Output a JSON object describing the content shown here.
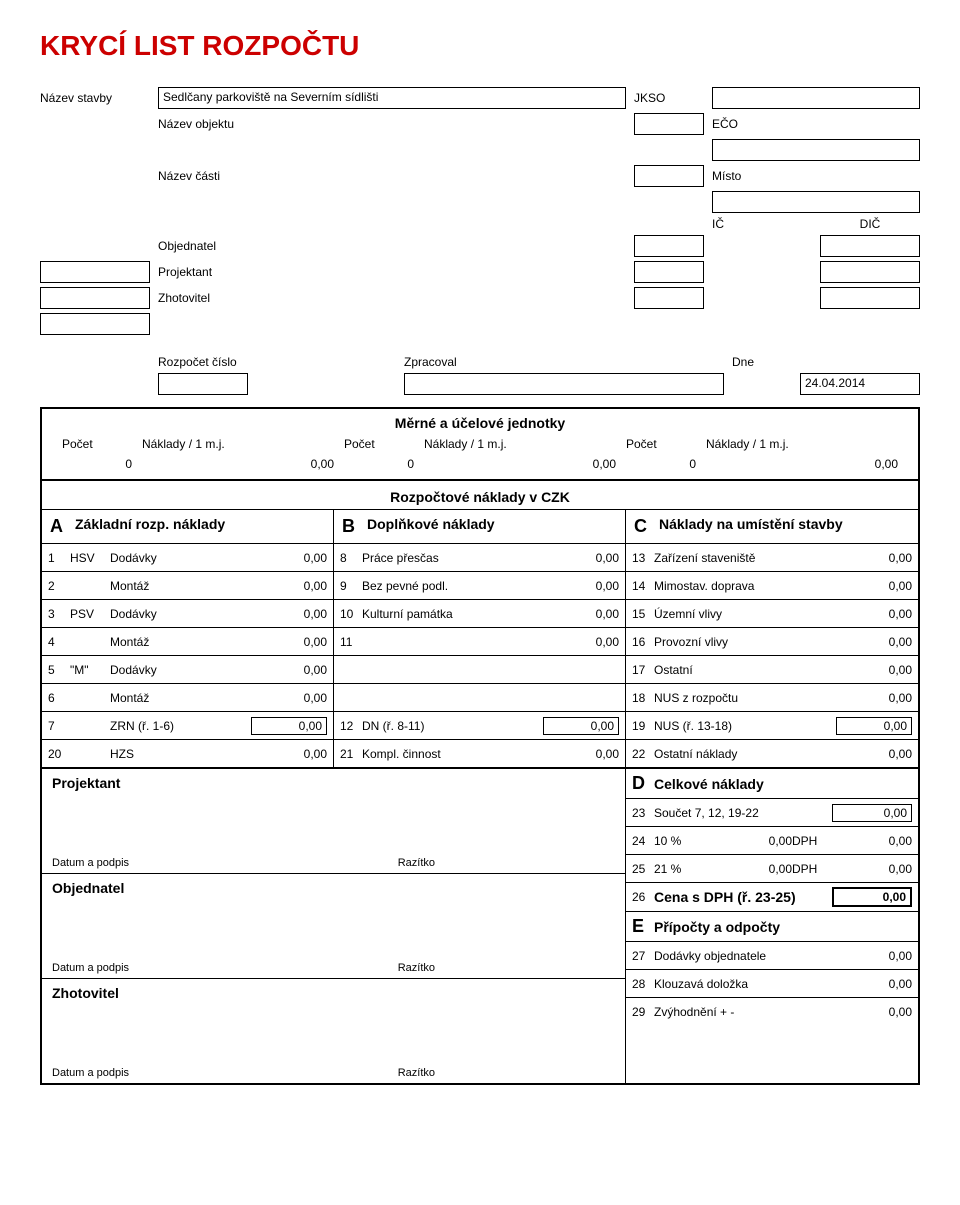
{
  "title": "KRYCÍ LIST ROZPOČTU",
  "header": {
    "nazev_stavby_lbl": "Název stavby",
    "nazev_stavby_val": "Sedlčany parkoviště na Severním sídlišti",
    "jkso_lbl": "JKSO",
    "nazev_objektu_lbl": "Název objektu",
    "eco_lbl": "EČO",
    "nazev_casti_lbl": "Název části",
    "misto_lbl": "Místo",
    "ic_lbl": "IČ",
    "dic_lbl": "DIČ",
    "objednatel_lbl": "Objednatel",
    "projektant_lbl": "Projektant",
    "zhotovitel_lbl": "Zhotovitel",
    "rozpocet_cislo_lbl": "Rozpočet číslo",
    "zpracoval_lbl": "Zpracoval",
    "dne_lbl": "Dne",
    "dne_val": "24.04.2014"
  },
  "units": {
    "title": "Měrné a účelové jednotky",
    "pocet_lbl": "Počet",
    "naklady_lbl": "Náklady / 1 m.j.",
    "v1": "0",
    "v2": "0,00",
    "v3": "0",
    "v4": "0,00",
    "v5": "0",
    "v6": "0,00"
  },
  "costs_title": "Rozpočtové náklady v    CZK",
  "abc": {
    "A": "A",
    "A_lbl": "Základní rozp. náklady",
    "B": "B",
    "B_lbl": "Doplňkové náklady",
    "C": "C",
    "C_lbl": "Náklady na umístění stavby"
  },
  "colA": [
    {
      "n": "1",
      "c": "HSV",
      "l": "Dodávky",
      "v": "0,00"
    },
    {
      "n": "2",
      "c": "",
      "l": "Montáž",
      "v": "0,00"
    },
    {
      "n": "3",
      "c": "PSV",
      "l": "Dodávky",
      "v": "0,00"
    },
    {
      "n": "4",
      "c": "",
      "l": "Montáž",
      "v": "0,00"
    },
    {
      "n": "5",
      "c": "\"M\"",
      "l": "Dodávky",
      "v": "0,00"
    },
    {
      "n": "6",
      "c": "",
      "l": "Montáž",
      "v": "0,00"
    },
    {
      "n": "7",
      "c": "",
      "l": "ZRN (ř. 1-6)",
      "v": "0,00",
      "box": true
    },
    {
      "n": "20",
      "c": "",
      "l": "HZS",
      "v": "0,00"
    }
  ],
  "colB": [
    {
      "n": "8",
      "l": "Práce přesčas",
      "v": "0,00"
    },
    {
      "n": "9",
      "l": "Bez pevné podl.",
      "v": "0,00"
    },
    {
      "n": "10",
      "l": "Kulturní památka",
      "v": "0,00"
    },
    {
      "n": "11",
      "l": "",
      "v": "0,00"
    },
    {
      "n": "",
      "l": "",
      "v": ""
    },
    {
      "n": "",
      "l": "",
      "v": ""
    },
    {
      "n": "12",
      "l": "DN (ř. 8-11)",
      "v": "0,00",
      "box": true
    },
    {
      "n": "21",
      "l": "Kompl. činnost",
      "v": "0,00"
    }
  ],
  "colC": [
    {
      "n": "13",
      "l": "Zařízení staveniště",
      "v": "0,00"
    },
    {
      "n": "14",
      "l": "Mimostav. doprava",
      "v": "0,00"
    },
    {
      "n": "15",
      "l": "Územní vlivy",
      "v": "0,00"
    },
    {
      "n": "16",
      "l": "Provozní vlivy",
      "v": "0,00"
    },
    {
      "n": "17",
      "l": "Ostatní",
      "v": "0,00"
    },
    {
      "n": "18",
      "l": "NUS z rozpočtu",
      "v": "0,00"
    },
    {
      "n": "19",
      "l": "NUS (ř. 13-18)",
      "v": "0,00",
      "box": true
    },
    {
      "n": "22",
      "l": "Ostatní náklady",
      "v": "0,00"
    }
  ],
  "sig": {
    "projektant": "Projektant",
    "objednatel": "Objednatel",
    "zhotovitel": "Zhotovitel",
    "datum": "Datum a podpis",
    "razitko": "Razítko"
  },
  "right": {
    "D": "D",
    "D_lbl": "Celkové náklady",
    "r23_n": "23",
    "r23_l": "Součet 7, 12, 19-22",
    "r23_v": "0,00",
    "r24_n": "24",
    "r24_l": "10 %",
    "r24_m": "0,00",
    "r24_d": "DPH",
    "r24_v": "0,00",
    "r25_n": "25",
    "r25_l": "21 %",
    "r25_m": "0,00",
    "r25_d": "DPH",
    "r25_v": "0,00",
    "r26_n": "26",
    "r26_l": "Cena s DPH (ř. 23-25)",
    "r26_v": "0,00",
    "E": "E",
    "E_lbl": "Přípočty a odpočty",
    "r27_n": "27",
    "r27_l": "Dodávky objednatele",
    "r27_v": "0,00",
    "r28_n": "28",
    "r28_l": "Klouzavá doložka",
    "r28_v": "0,00",
    "r29_n": "29",
    "r29_l": "Zvýhodnění + -",
    "r29_v": "0,00"
  }
}
